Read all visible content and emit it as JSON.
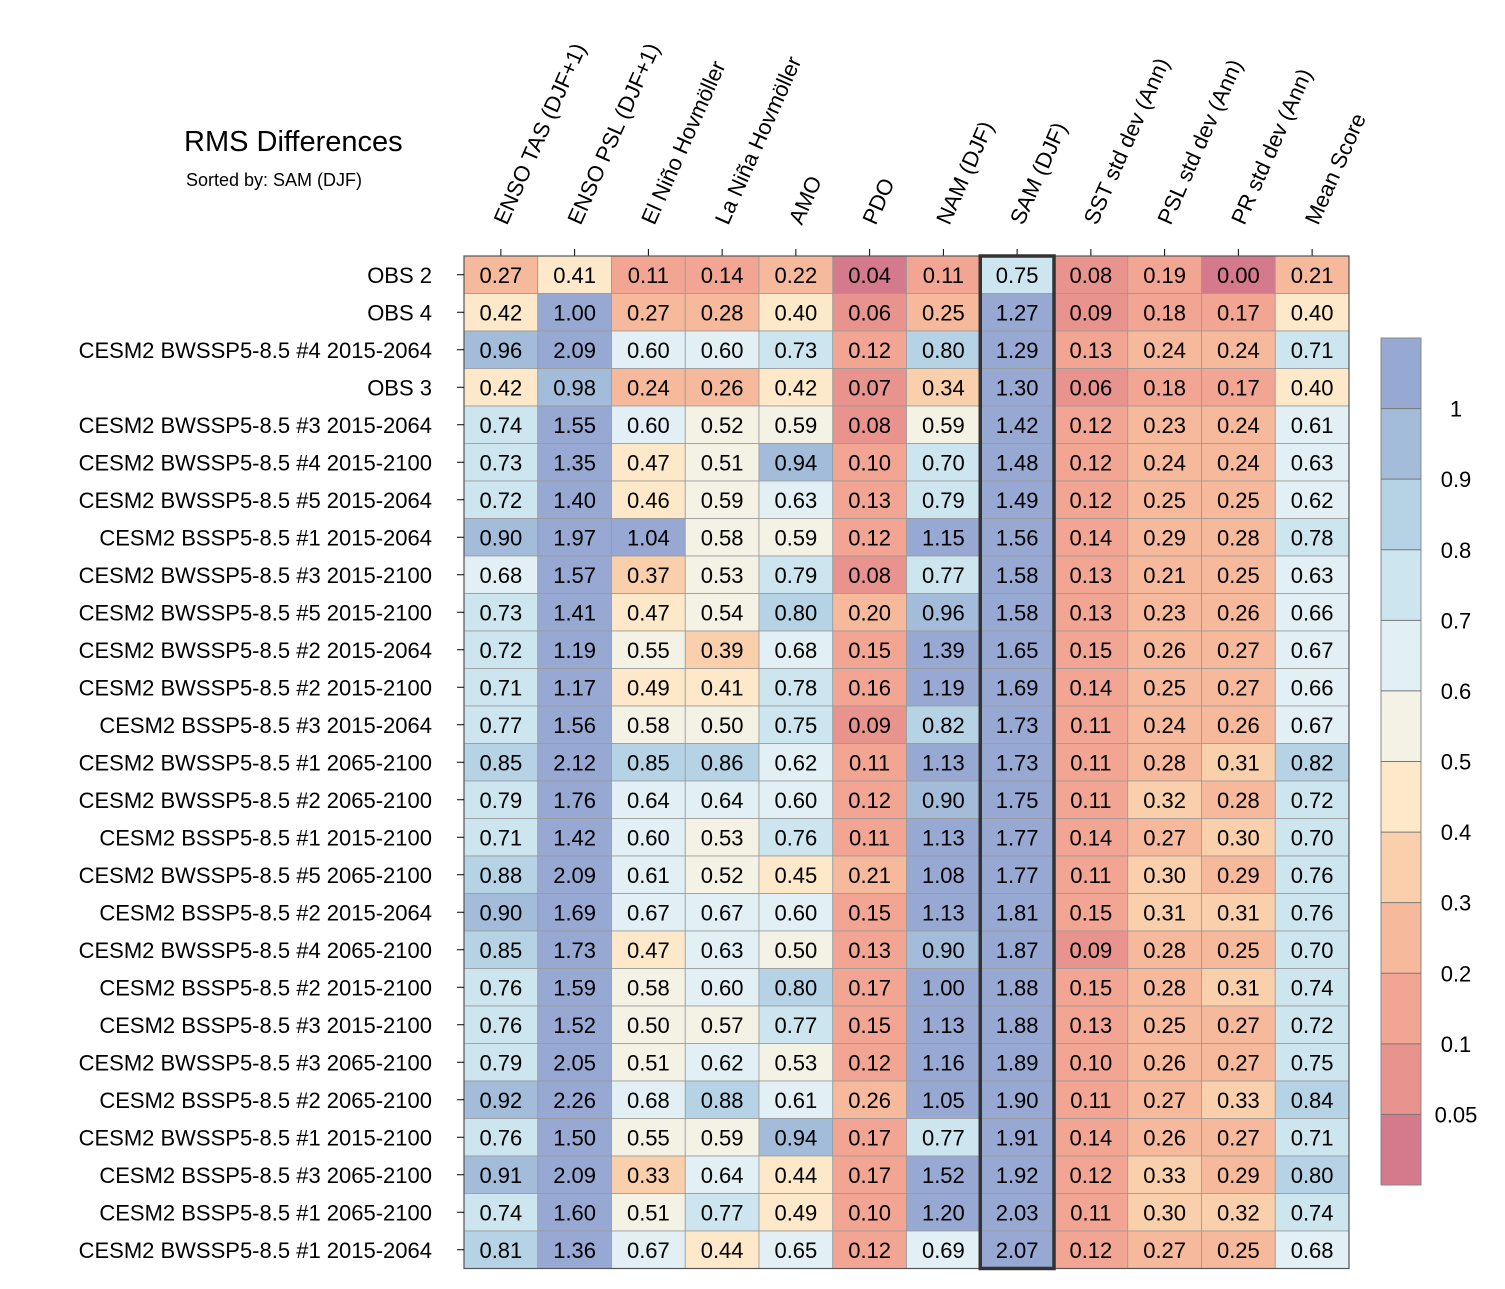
{
  "chart_data": {
    "type": "heatmap",
    "title": "RMS Differences",
    "subtitle": "Sorted by: SAM (DJF)",
    "highlight_column": 7,
    "columns": [
      "ENSO TAS (DJF+1)",
      "ENSO PSL (DJF+1)",
      "El Niño Hovmöller",
      "La Niña Hovmöller",
      "AMO",
      "PDO",
      "NAM (DJF)",
      "SAM (DJF)",
      "SST std dev (Ann)",
      "PSL std dev (Ann)",
      "PR std dev (Ann)",
      "Mean Score"
    ],
    "rows": [
      "OBS 2",
      "OBS 4",
      "CESM2 BWSSP5-8.5 #4 2015-2064",
      "OBS 3",
      "CESM2 BWSSP5-8.5 #3 2015-2064",
      "CESM2 BWSSP5-8.5 #4 2015-2100",
      "CESM2 BWSSP5-8.5 #5 2015-2064",
      "CESM2 BSSP5-8.5 #1 2015-2064",
      "CESM2 BWSSP5-8.5 #3 2015-2100",
      "CESM2 BWSSP5-8.5 #5 2015-2100",
      "CESM2 BWSSP5-8.5 #2 2015-2064",
      "CESM2 BWSSP5-8.5 #2 2015-2100",
      "CESM2 BSSP5-8.5 #3 2015-2064",
      "CESM2 BWSSP5-8.5 #1 2065-2100",
      "CESM2 BWSSP5-8.5 #2 2065-2100",
      "CESM2 BSSP5-8.5 #1 2015-2100",
      "CESM2 BWSSP5-8.5 #5 2065-2100",
      "CESM2 BSSP5-8.5 #2 2015-2064",
      "CESM2 BWSSP5-8.5 #4 2065-2100",
      "CESM2 BSSP5-8.5 #2 2015-2100",
      "CESM2 BSSP5-8.5 #3 2015-2100",
      "CESM2 BWSSP5-8.5 #3 2065-2100",
      "CESM2 BSSP5-8.5 #2 2065-2100",
      "CESM2 BWSSP5-8.5 #1 2015-2100",
      "CESM2 BSSP5-8.5 #3 2065-2100",
      "CESM2 BSSP5-8.5 #1 2065-2100",
      "CESM2 BWSSP5-8.5 #1 2015-2064"
    ],
    "values": [
      [
        0.27,
        0.41,
        0.11,
        0.14,
        0.22,
        0.04,
        0.11,
        0.75,
        0.08,
        0.19,
        0.0,
        0.21
      ],
      [
        0.42,
        1.0,
        0.27,
        0.28,
        0.4,
        0.06,
        0.25,
        1.27,
        0.09,
        0.18,
        0.17,
        0.4
      ],
      [
        0.96,
        2.09,
        0.6,
        0.6,
        0.73,
        0.12,
        0.8,
        1.29,
        0.13,
        0.24,
        0.24,
        0.71
      ],
      [
        0.42,
        0.98,
        0.24,
        0.26,
        0.42,
        0.07,
        0.34,
        1.3,
        0.06,
        0.18,
        0.17,
        0.4
      ],
      [
        0.74,
        1.55,
        0.6,
        0.52,
        0.59,
        0.08,
        0.59,
        1.42,
        0.12,
        0.23,
        0.24,
        0.61
      ],
      [
        0.73,
        1.35,
        0.47,
        0.51,
        0.94,
        0.1,
        0.7,
        1.48,
        0.12,
        0.24,
        0.24,
        0.63
      ],
      [
        0.72,
        1.4,
        0.46,
        0.59,
        0.63,
        0.13,
        0.79,
        1.49,
        0.12,
        0.25,
        0.25,
        0.62
      ],
      [
        0.9,
        1.97,
        1.04,
        0.58,
        0.59,
        0.12,
        1.15,
        1.56,
        0.14,
        0.29,
        0.28,
        0.78
      ],
      [
        0.68,
        1.57,
        0.37,
        0.53,
        0.79,
        0.08,
        0.77,
        1.58,
        0.13,
        0.21,
        0.25,
        0.63
      ],
      [
        0.73,
        1.41,
        0.47,
        0.54,
        0.8,
        0.2,
        0.96,
        1.58,
        0.13,
        0.23,
        0.26,
        0.66
      ],
      [
        0.72,
        1.19,
        0.55,
        0.39,
        0.68,
        0.15,
        1.39,
        1.65,
        0.15,
        0.26,
        0.27,
        0.67
      ],
      [
        0.71,
        1.17,
        0.49,
        0.41,
        0.78,
        0.16,
        1.19,
        1.69,
        0.14,
        0.25,
        0.27,
        0.66
      ],
      [
        0.77,
        1.56,
        0.58,
        0.5,
        0.75,
        0.09,
        0.82,
        1.73,
        0.11,
        0.24,
        0.26,
        0.67
      ],
      [
        0.85,
        2.12,
        0.85,
        0.86,
        0.62,
        0.11,
        1.13,
        1.73,
        0.11,
        0.28,
        0.31,
        0.82
      ],
      [
        0.79,
        1.76,
        0.64,
        0.64,
        0.6,
        0.12,
        0.9,
        1.75,
        0.11,
        0.32,
        0.28,
        0.72
      ],
      [
        0.71,
        1.42,
        0.6,
        0.53,
        0.76,
        0.11,
        1.13,
        1.77,
        0.14,
        0.27,
        0.3,
        0.7
      ],
      [
        0.88,
        2.09,
        0.61,
        0.52,
        0.45,
        0.21,
        1.08,
        1.77,
        0.11,
        0.3,
        0.29,
        0.76
      ],
      [
        0.9,
        1.69,
        0.67,
        0.67,
        0.6,
        0.15,
        1.13,
        1.81,
        0.15,
        0.31,
        0.31,
        0.76
      ],
      [
        0.85,
        1.73,
        0.47,
        0.63,
        0.5,
        0.13,
        0.9,
        1.87,
        0.09,
        0.28,
        0.25,
        0.7
      ],
      [
        0.76,
        1.59,
        0.58,
        0.6,
        0.8,
        0.17,
        1.0,
        1.88,
        0.15,
        0.28,
        0.31,
        0.74
      ],
      [
        0.76,
        1.52,
        0.5,
        0.57,
        0.77,
        0.15,
        1.13,
        1.88,
        0.13,
        0.25,
        0.27,
        0.72
      ],
      [
        0.79,
        2.05,
        0.51,
        0.62,
        0.53,
        0.12,
        1.16,
        1.89,
        0.1,
        0.26,
        0.27,
        0.75
      ],
      [
        0.92,
        2.26,
        0.68,
        0.88,
        0.61,
        0.26,
        1.05,
        1.9,
        0.11,
        0.27,
        0.33,
        0.84
      ],
      [
        0.76,
        1.5,
        0.55,
        0.59,
        0.94,
        0.17,
        0.77,
        1.91,
        0.14,
        0.26,
        0.27,
        0.71
      ],
      [
        0.91,
        2.09,
        0.33,
        0.64,
        0.44,
        0.17,
        1.52,
        1.92,
        0.12,
        0.33,
        0.29,
        0.8
      ],
      [
        0.74,
        1.6,
        0.51,
        0.77,
        0.49,
        0.1,
        1.2,
        2.03,
        0.11,
        0.3,
        0.32,
        0.74
      ],
      [
        0.81,
        1.36,
        0.67,
        0.44,
        0.65,
        0.12,
        0.69,
        2.07,
        0.12,
        0.27,
        0.25,
        0.68
      ]
    ],
    "colorbar": {
      "levels": [
        0.05,
        0.1,
        0.2,
        0.3,
        0.4,
        0.5,
        0.6,
        0.7,
        0.8,
        0.9,
        1
      ],
      "labels": [
        "0.05",
        "0.1",
        "0.2",
        "0.3",
        "0.4",
        "0.5",
        "0.6",
        "0.7",
        "0.8",
        "0.9",
        "1"
      ],
      "colors": [
        "#d57a8d",
        "#e8938d",
        "#f2a593",
        "#f7b99c",
        "#fad0ac",
        "#fde9c9",
        "#f4f1e5",
        "#e2eff4",
        "#cce5ef",
        "#b6d3e6",
        "#a3bcd9",
        "#97a8d2"
      ]
    }
  }
}
